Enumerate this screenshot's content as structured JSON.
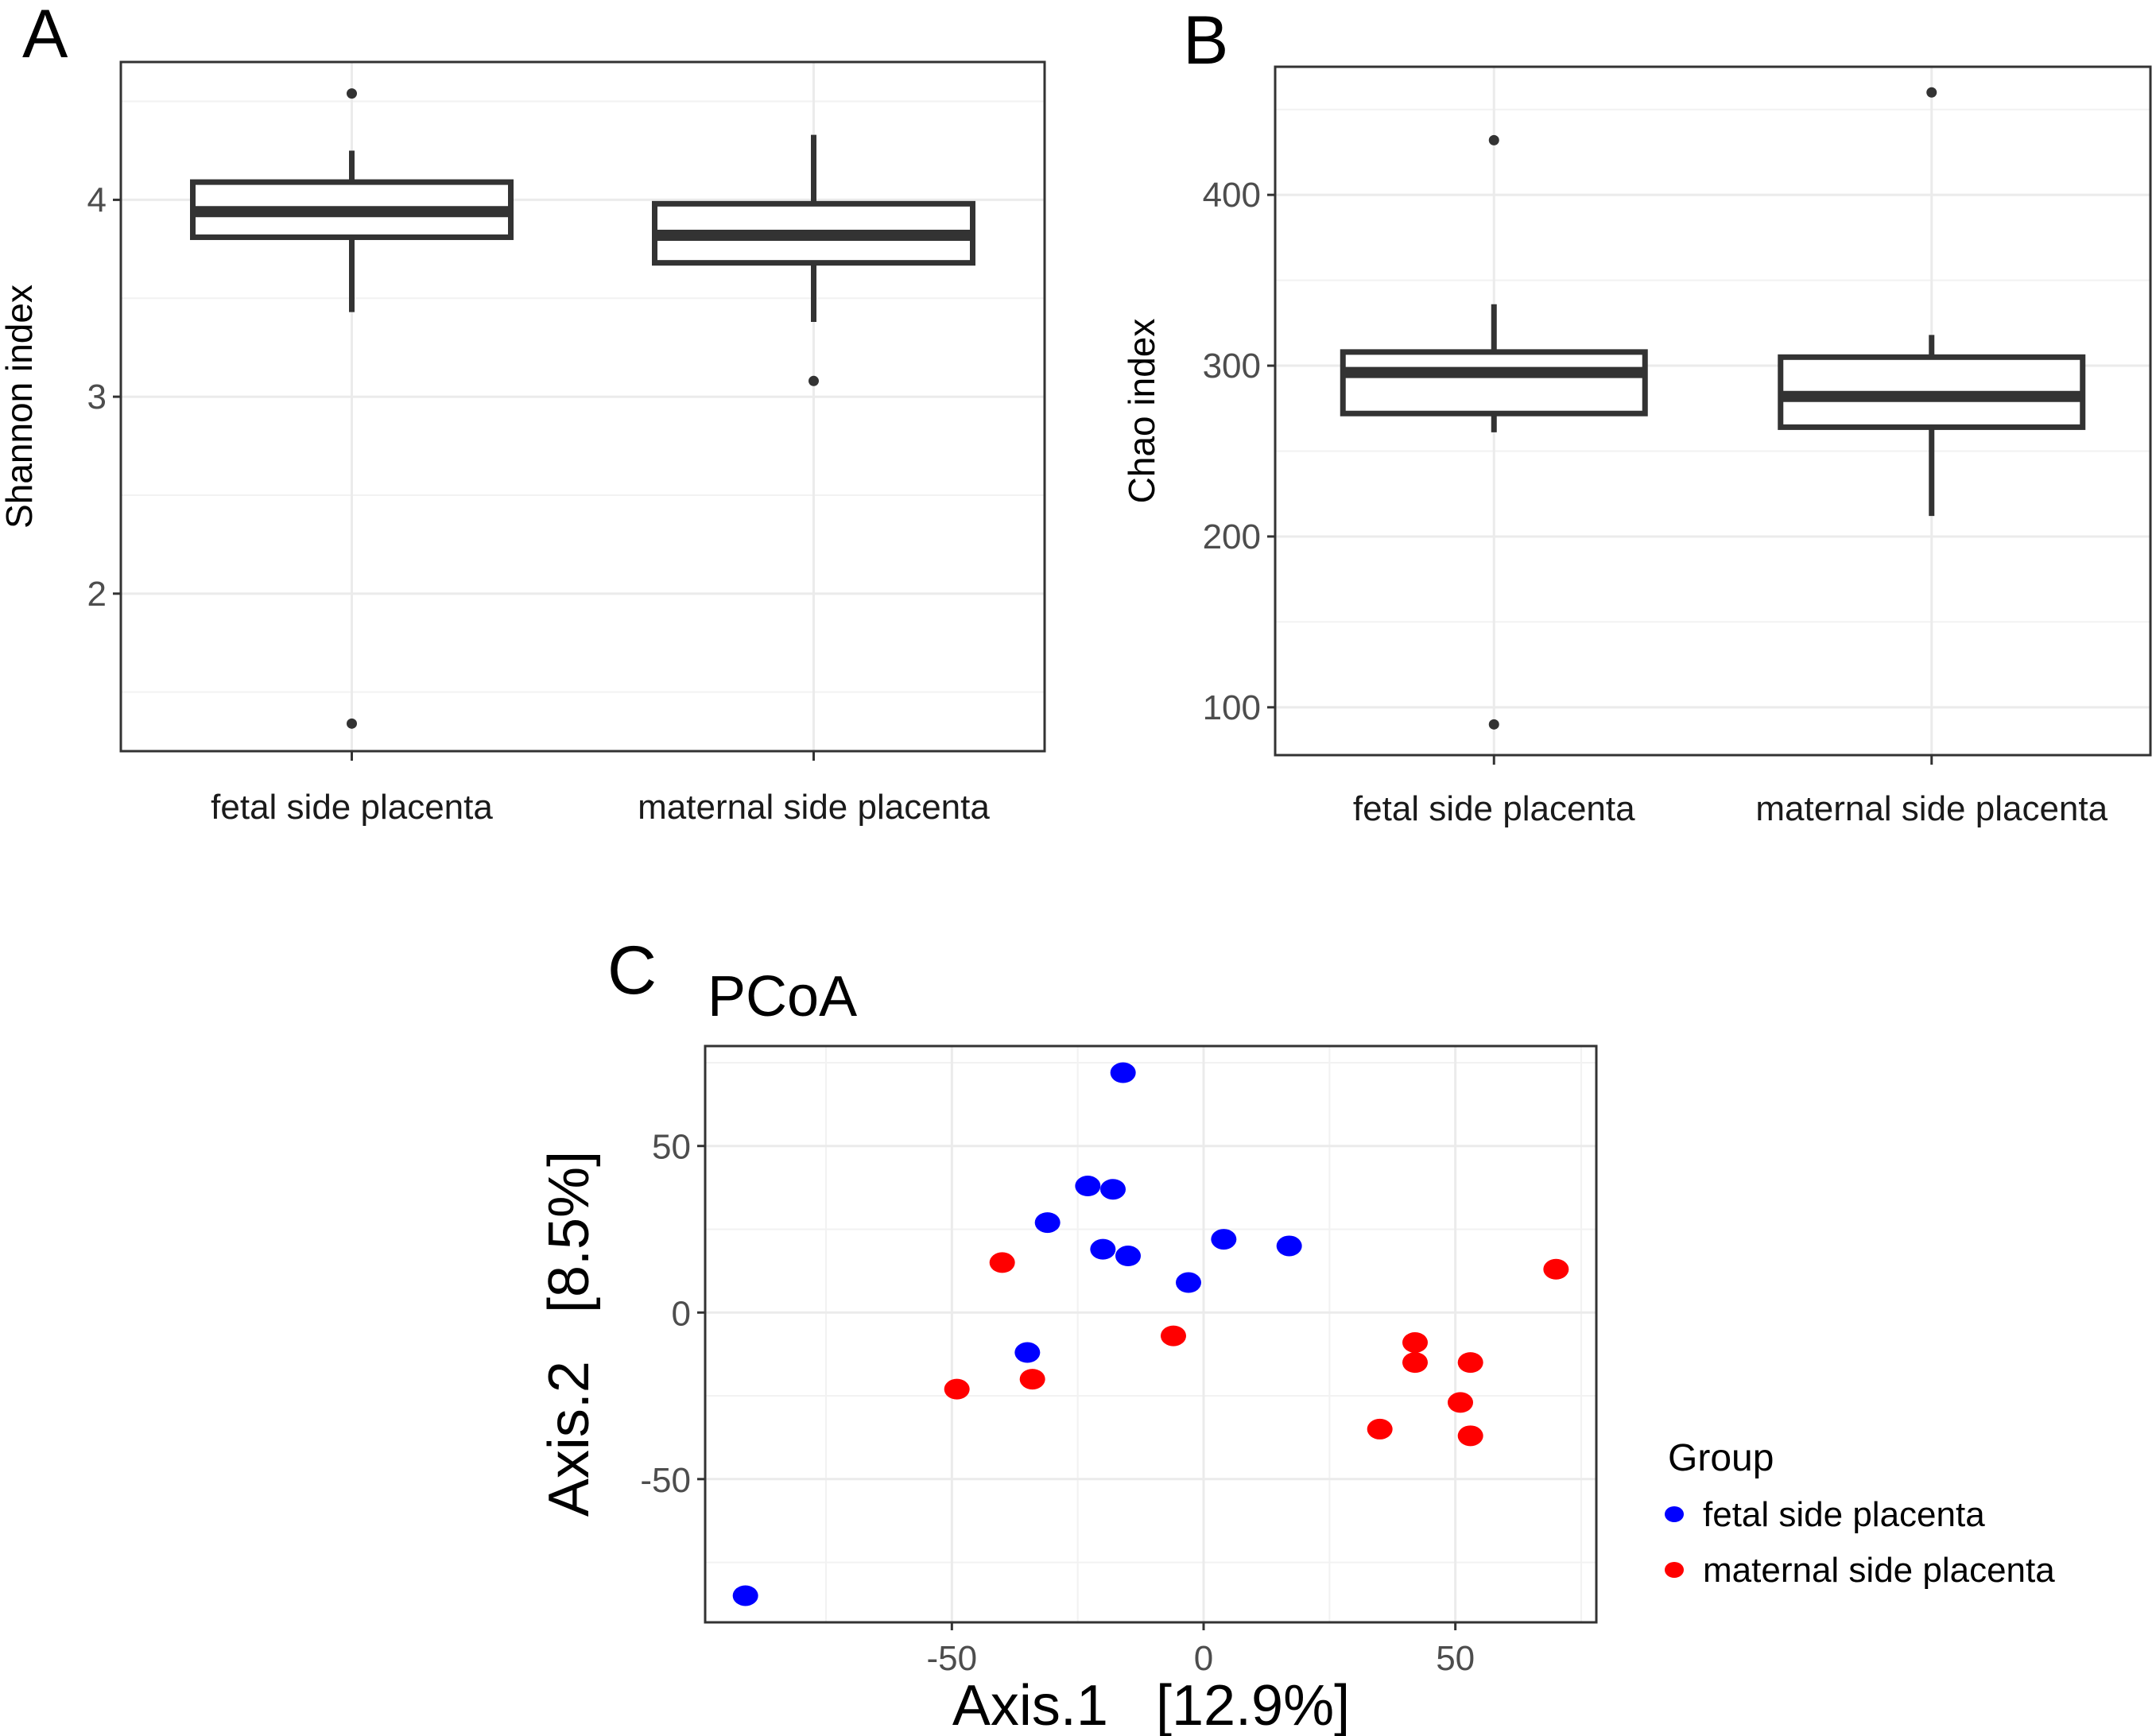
{
  "figure": {
    "panels": [
      "A",
      "B",
      "C"
    ]
  },
  "chart_data": [
    {
      "panel": "A",
      "type": "box",
      "title": "",
      "xlabel": "",
      "ylabel": "Shannon index",
      "categories": [
        "fetal side placenta",
        "maternal side placenta"
      ],
      "ylim": [
        1.2,
        4.7
      ],
      "yticks": [
        2,
        3,
        4
      ],
      "grid": true,
      "boxes": [
        {
          "category": "fetal side placenta",
          "whisker_low": 3.43,
          "q1": 3.81,
          "median": 3.94,
          "q3": 4.09,
          "whisker_high": 4.25,
          "outliers": [
            4.54,
            1.34
          ]
        },
        {
          "category": "maternal side placenta",
          "whisker_low": 3.38,
          "q1": 3.68,
          "median": 3.82,
          "q3": 3.98,
          "whisker_high": 4.33,
          "outliers": [
            3.08
          ]
        }
      ]
    },
    {
      "panel": "B",
      "type": "box",
      "title": "",
      "xlabel": "",
      "ylabel": "Chao index",
      "categories": [
        "fetal side placenta",
        "maternal side placenta"
      ],
      "ylim": [
        72,
        475
      ],
      "yticks": [
        100,
        200,
        300,
        400
      ],
      "grid": true,
      "boxes": [
        {
          "category": "fetal side placenta",
          "whisker_low": 261,
          "q1": 272,
          "median": 296,
          "q3": 308,
          "whisker_high": 336,
          "outliers": [
            432,
            90
          ]
        },
        {
          "category": "maternal side placenta",
          "whisker_low": 212,
          "q1": 264,
          "median": 282,
          "q3": 305,
          "whisker_high": 318,
          "outliers": [
            460
          ]
        }
      ]
    },
    {
      "panel": "C",
      "type": "scatter",
      "title": "PCoA",
      "xlabel": "Axis.1   [12.9%]",
      "ylabel": "Axis.2   [8.5%]",
      "xlim": [
        -99,
        78
      ],
      "ylim": [
        -93,
        80
      ],
      "xticks": [
        -50,
        0,
        50
      ],
      "yticks": [
        -50,
        0,
        50
      ],
      "grid": true,
      "legend": {
        "title": "Group",
        "position": "right"
      },
      "series": [
        {
          "name": "fetal side placenta",
          "color": "#0000ff",
          "points": [
            [
              -16,
              72
            ],
            [
              -23,
              38
            ],
            [
              -18,
              37
            ],
            [
              -31,
              27
            ],
            [
              -20,
              19
            ],
            [
              -15,
              17
            ],
            [
              4,
              22
            ],
            [
              17,
              20
            ],
            [
              -3,
              9
            ],
            [
              -35,
              -12
            ],
            [
              -91,
              -85
            ]
          ]
        },
        {
          "name": "maternal side placenta",
          "color": "#ff0000",
          "points": [
            [
              -40,
              15
            ],
            [
              -6,
              -7
            ],
            [
              -49,
              -23
            ],
            [
              -34,
              -20
            ],
            [
              42,
              -9
            ],
            [
              42,
              -15
            ],
            [
              53,
              -15
            ],
            [
              51,
              -27
            ],
            [
              53,
              -37
            ],
            [
              35,
              -35
            ],
            [
              70,
              13
            ]
          ]
        }
      ]
    }
  ]
}
